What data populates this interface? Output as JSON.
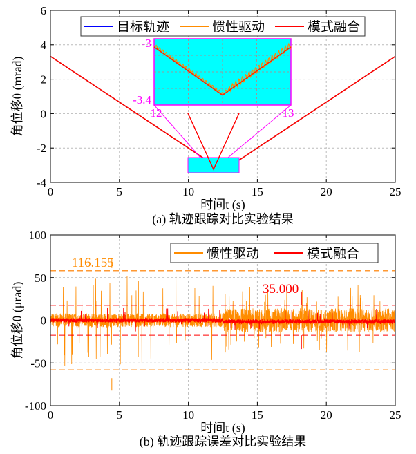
{
  "chart_data": [
    {
      "type": "line",
      "title": "(a) 轨迹跟踪对比实验结果",
      "xlabel": "时间t (s)",
      "ylabel": "角位移θ (mrad)",
      "xlim": [
        0,
        25
      ],
      "ylim": [
        -4,
        6
      ],
      "xticks": [
        0,
        5,
        10,
        15,
        20,
        25
      ],
      "yticks": [
        -4,
        -2,
        0,
        2,
        4,
        6
      ],
      "grid": true,
      "legend": "top",
      "series": [
        {
          "name": "目标轨迹",
          "color": "#0000ff",
          "x": [
            0,
            12.5,
            25
          ],
          "y": [
            3.33,
            -3.33,
            3.33
          ]
        },
        {
          "name": "惯性驱动",
          "color": "#ff8c00",
          "x": [
            0,
            12.5,
            25
          ],
          "y": [
            3.33,
            -3.33,
            3.33
          ]
        },
        {
          "name": "模式融合",
          "color": "#ff0000",
          "x": [
            0,
            12.5,
            25
          ],
          "y": [
            3.33,
            -3.33,
            3.33
          ]
        }
      ],
      "inset": {
        "xlim": [
          12,
          13
        ],
        "ylim": [
          -3.4,
          -3
        ],
        "xticks": [
          "12",
          "13"
        ],
        "yticks": [
          "-3",
          "-3.4"
        ],
        "background": "#00ffff",
        "border": "#ff00ff"
      }
    },
    {
      "type": "line",
      "title": "(b) 轨迹跟踪误差对比实验结果",
      "xlabel": "时间t (s)",
      "ylabel": "角位移θ (μrad)",
      "xlim": [
        0,
        25
      ],
      "ylim": [
        -100,
        100
      ],
      "xticks": [
        0,
        5,
        10,
        15,
        20,
        25
      ],
      "yticks": [
        -100,
        -50,
        0,
        50,
        100
      ],
      "grid": true,
      "legend": "top-right",
      "series": [
        {
          "name": "惯性驱动",
          "color": "#ff8c00",
          "peak_to_peak": 116.155
        },
        {
          "name": "模式融合",
          "color": "#ff0000",
          "peak_to_peak": 35.0
        }
      ],
      "annotations": [
        {
          "text": "116.155",
          "color": "#ff8c00",
          "x": 4.7
        },
        {
          "text": "35.000",
          "color": "#ff0000",
          "x": 18.2
        }
      ]
    }
  ]
}
